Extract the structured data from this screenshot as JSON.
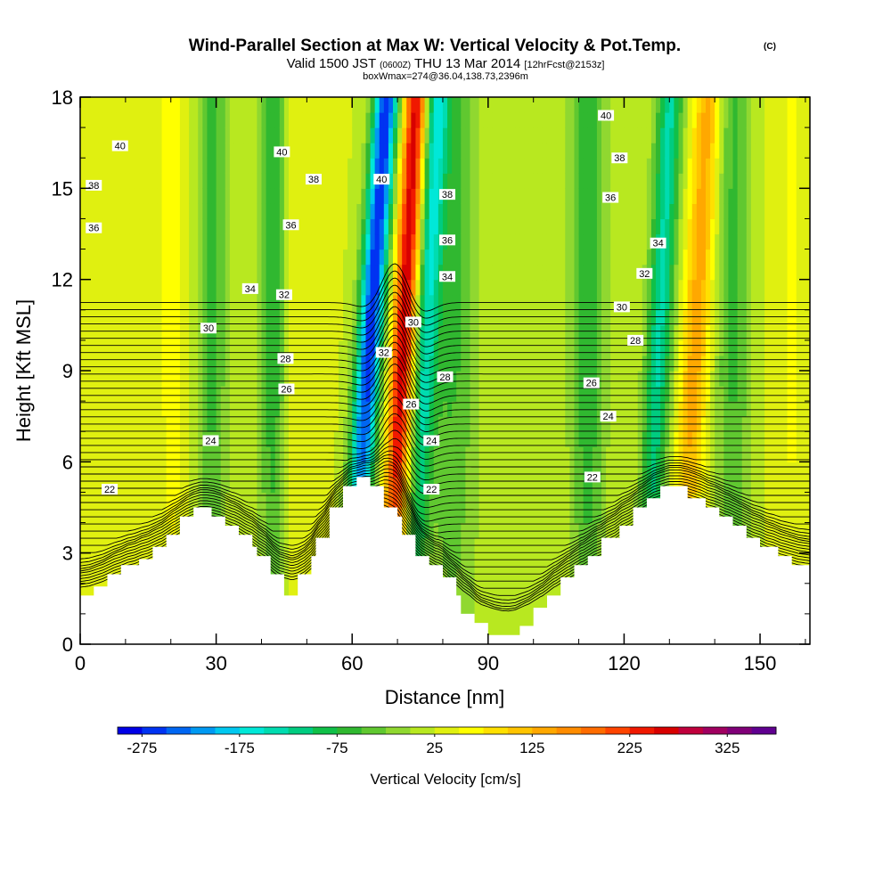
{
  "chart_data": {
    "type": "heatmap",
    "title": "Wind-Parallel Section at Max W: Vertical Velocity & Pot.Temp.",
    "title_copyright": "(C)",
    "subtitle": {
      "valid": "Valid 1500 JST",
      "utc": "(0600Z)",
      "date": "THU 13 Mar 2014",
      "forecast": "[12hrFcst@2153z]"
    },
    "subtitle2": "boxWmax=274@36.04,138.73,2396m",
    "xlabel": "Distance [nm]",
    "ylabel": "Height [Kft MSL]",
    "xlim": [
      0,
      161
    ],
    "ylim": [
      0,
      18
    ],
    "xticks": [
      0,
      30,
      60,
      90,
      120,
      150
    ],
    "yticks": [
      0,
      3,
      6,
      9,
      12,
      15,
      18
    ],
    "terrain_kft": [
      [
        0,
        1.6
      ],
      [
        3,
        1.6
      ],
      [
        3,
        1.9
      ],
      [
        6,
        1.9
      ],
      [
        6,
        2.3
      ],
      [
        9,
        2.3
      ],
      [
        9,
        2.6
      ],
      [
        13,
        2.6
      ],
      [
        13,
        2.8
      ],
      [
        16,
        2.8
      ],
      [
        16,
        3.2
      ],
      [
        19,
        3.2
      ],
      [
        19,
        3.6
      ],
      [
        22,
        3.6
      ],
      [
        22,
        4.2
      ],
      [
        25,
        4.2
      ],
      [
        25,
        4.5
      ],
      [
        29,
        4.5
      ],
      [
        29,
        4.2
      ],
      [
        32,
        4.2
      ],
      [
        32,
        3.9
      ],
      [
        35,
        3.9
      ],
      [
        35,
        3.6
      ],
      [
        38,
        3.6
      ],
      [
        38,
        3.2
      ],
      [
        39,
        3.2
      ],
      [
        39,
        2.9
      ],
      [
        42,
        2.9
      ],
      [
        42,
        2.3
      ],
      [
        45,
        2.3
      ],
      [
        45,
        1.6
      ],
      [
        48,
        1.6
      ],
      [
        48,
        2.3
      ],
      [
        51,
        2.3
      ],
      [
        51,
        2.9
      ],
      [
        52,
        2.9
      ],
      [
        52,
        3.5
      ],
      [
        55,
        3.5
      ],
      [
        55,
        4.5
      ],
      [
        58,
        4.5
      ],
      [
        58,
        5.2
      ],
      [
        61,
        5.2
      ],
      [
        61,
        5.5
      ],
      [
        64,
        5.5
      ],
      [
        64,
        5.2
      ],
      [
        67,
        5.2
      ],
      [
        67,
        4.5
      ],
      [
        70,
        4.5
      ],
      [
        70,
        4.2
      ],
      [
        71,
        4.2
      ],
      [
        71,
        3.6
      ],
      [
        74,
        3.6
      ],
      [
        74,
        2.9
      ],
      [
        77,
        2.9
      ],
      [
        77,
        2.6
      ],
      [
        80,
        2.6
      ],
      [
        80,
        2.2
      ],
      [
        83,
        2.2
      ],
      [
        83,
        1.6
      ],
      [
        84,
        1.6
      ],
      [
        84,
        1.0
      ],
      [
        87,
        1.0
      ],
      [
        87,
        0.7
      ],
      [
        90,
        0.7
      ],
      [
        90,
        0.3
      ],
      [
        97,
        0.3
      ],
      [
        97,
        0.6
      ],
      [
        100,
        0.6
      ],
      [
        100,
        1.2
      ],
      [
        103,
        1.2
      ],
      [
        103,
        1.6
      ],
      [
        106,
        1.6
      ],
      [
        106,
        2.2
      ],
      [
        109,
        2.2
      ],
      [
        109,
        2.6
      ],
      [
        112,
        2.6
      ],
      [
        112,
        2.9
      ],
      [
        115,
        2.9
      ],
      [
        115,
        3.5
      ],
      [
        119,
        3.5
      ],
      [
        119,
        3.9
      ],
      [
        122,
        3.9
      ],
      [
        122,
        4.5
      ],
      [
        125,
        4.5
      ],
      [
        125,
        4.8
      ],
      [
        128,
        4.8
      ],
      [
        128,
        5.2
      ],
      [
        134,
        5.2
      ],
      [
        134,
        4.8
      ],
      [
        138,
        4.8
      ],
      [
        138,
        4.5
      ],
      [
        141,
        4.5
      ],
      [
        141,
        4.2
      ],
      [
        144,
        4.2
      ],
      [
        144,
        3.9
      ],
      [
        147,
        3.9
      ],
      [
        147,
        3.5
      ],
      [
        150,
        3.5
      ],
      [
        150,
        3.2
      ],
      [
        154,
        3.2
      ],
      [
        154,
        2.9
      ],
      [
        157,
        2.9
      ],
      [
        157,
        2.6
      ],
      [
        161,
        2.6
      ]
    ],
    "vertical_velocity_features": [
      {
        "x_center": 63.5,
        "tilt_nm_per_kft": 0.45,
        "peak_cm_s": -274,
        "width_nm": 2.8
      },
      {
        "x_center": 71.0,
        "tilt_nm_per_kft": 0.35,
        "peak_cm_s": 274,
        "width_nm": 2.6
      },
      {
        "x_center": 76.0,
        "tilt_nm_per_kft": 0.3,
        "peak_cm_s": -120,
        "width_nm": 2.5
      },
      {
        "x_center": 82.0,
        "tilt_nm_per_kft": 0.0,
        "peak_cm_s": -55,
        "width_nm": 6.0
      },
      {
        "x_center": 42.5,
        "tilt_nm_per_kft": 0.0,
        "peak_cm_s": -75,
        "width_nm": 3.0
      },
      {
        "x_center": 48.5,
        "tilt_nm_per_kft": 0.0,
        "peak_cm_s": 45,
        "width_nm": 5.5
      },
      {
        "x_center": 29.0,
        "tilt_nm_per_kft": 0.0,
        "peak_cm_s": -60,
        "width_nm": 3.5
      },
      {
        "x_center": 20.5,
        "tilt_nm_per_kft": 0.0,
        "peak_cm_s": 60,
        "width_nm": 4.0
      },
      {
        "x_center": 112.0,
        "tilt_nm_per_kft": 0.0,
        "peak_cm_s": -75,
        "width_nm": 4.0
      },
      {
        "x_center": 127.5,
        "tilt_nm_per_kft": 0.3,
        "peak_cm_s": -130,
        "width_nm": 3.0
      },
      {
        "x_center": 135.5,
        "tilt_nm_per_kft": 0.35,
        "peak_cm_s": 140,
        "width_nm": 3.2
      },
      {
        "x_center": 144.0,
        "tilt_nm_per_kft": 0.0,
        "peak_cm_s": -55,
        "width_nm": 4.0
      },
      {
        "x_center": 157.0,
        "tilt_nm_per_kft": 0.0,
        "peak_cm_s": 55,
        "width_nm": 3.5
      }
    ],
    "theta_contours": {
      "units": "K-offset labels",
      "labels": [
        {
          "text": "40",
          "x": 8.8,
          "y": 16.4
        },
        {
          "text": "40",
          "x": 44.5,
          "y": 16.2
        },
        {
          "text": "40",
          "x": 66.5,
          "y": 15.3
        },
        {
          "text": "40",
          "x": 116.0,
          "y": 17.4
        },
        {
          "text": "38",
          "x": 3.0,
          "y": 15.1
        },
        {
          "text": "38",
          "x": 51.5,
          "y": 15.3
        },
        {
          "text": "38",
          "x": 81.0,
          "y": 14.8
        },
        {
          "text": "38",
          "x": 119.0,
          "y": 16.0
        },
        {
          "text": "36",
          "x": 3.0,
          "y": 13.7
        },
        {
          "text": "36",
          "x": 46.5,
          "y": 13.8
        },
        {
          "text": "36",
          "x": 81.0,
          "y": 13.3
        },
        {
          "text": "36",
          "x": 117.0,
          "y": 14.7
        },
        {
          "text": "34",
          "x": 37.5,
          "y": 11.7
        },
        {
          "text": "34",
          "x": 81.0,
          "y": 12.1
        },
        {
          "text": "34",
          "x": 127.5,
          "y": 13.2
        },
        {
          "text": "32",
          "x": 45.0,
          "y": 11.5
        },
        {
          "text": "32",
          "x": 67.0,
          "y": 9.6
        },
        {
          "text": "32",
          "x": 124.5,
          "y": 12.2
        },
        {
          "text": "30",
          "x": 28.3,
          "y": 10.4
        },
        {
          "text": "30",
          "x": 73.5,
          "y": 10.6
        },
        {
          "text": "30",
          "x": 119.5,
          "y": 11.1
        },
        {
          "text": "28",
          "x": 45.3,
          "y": 9.4
        },
        {
          "text": "28",
          "x": 80.5,
          "y": 8.8
        },
        {
          "text": "28",
          "x": 122.5,
          "y": 10.0
        },
        {
          "text": "26",
          "x": 45.5,
          "y": 8.4
        },
        {
          "text": "26",
          "x": 73.0,
          "y": 7.9
        },
        {
          "text": "26",
          "x": 112.8,
          "y": 8.6
        },
        {
          "text": "24",
          "x": 28.8,
          "y": 6.7
        },
        {
          "text": "24",
          "x": 77.5,
          "y": 6.7
        },
        {
          "text": "24",
          "x": 116.5,
          "y": 7.5
        },
        {
          "text": "22",
          "x": 6.5,
          "y": 5.1
        },
        {
          "text": "22",
          "x": 77.5,
          "y": 5.1
        },
        {
          "text": "22",
          "x": 113.0,
          "y": 5.5
        }
      ]
    },
    "colorbar": {
      "label": "Vertical Velocity [cm/s]",
      "min": -300,
      "max": 375,
      "step": 25,
      "tick_labels": [
        "-275",
        "-175",
        "-75",
        "25",
        "125",
        "225",
        "325"
      ],
      "tick_values": [
        -275,
        -175,
        -75,
        25,
        125,
        225,
        325
      ],
      "colors": [
        "#0000e6",
        "#0033f2",
        "#0066f2",
        "#0099f2",
        "#00c8f0",
        "#00e8d8",
        "#00dcb0",
        "#00cc80",
        "#10c048",
        "#30b830",
        "#60c830",
        "#90d830",
        "#b8e820",
        "#e0f010",
        "#ffff00",
        "#ffe000",
        "#ffc400",
        "#ffa800",
        "#ff8c00",
        "#ff6c00",
        "#ff4400",
        "#f01800",
        "#d80000",
        "#c0003c",
        "#a00060",
        "#800078",
        "#600090"
      ]
    }
  }
}
